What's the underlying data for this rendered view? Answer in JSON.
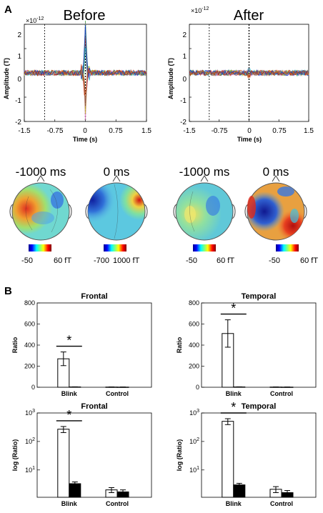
{
  "panel_labels": [
    "A",
    "B"
  ],
  "panel_a": {
    "before": {
      "title": "Before",
      "exponent": "×10",
      "exponent_power": "-12",
      "ylabel": "Amplitude (T)",
      "xlabel": "Time (s)",
      "xticks": [
        "-1.5",
        "-0.75",
        "0",
        "0.75",
        "1.5"
      ],
      "yticks": [
        "2",
        "1",
        "0",
        "-1",
        "-2"
      ],
      "topomaps": [
        {
          "time": "-1000 ms",
          "scale_min": "-50",
          "scale_max": "60 fT"
        },
        {
          "time": "0 ms",
          "scale_min": "-700",
          "scale_max": "1000 fT"
        }
      ]
    },
    "after": {
      "title": "After",
      "exponent": "×10",
      "exponent_power": "-12",
      "ylabel": "Amplitude (T)",
      "xlabel": "Time (s)",
      "xticks": [
        "-1.5",
        "-0.75",
        "0",
        "0.75",
        "1.5"
      ],
      "yticks": [
        "2",
        "1",
        "0",
        "-1",
        "-2"
      ],
      "topomaps": [
        {
          "time": "-1000 ms",
          "scale_min": "-50",
          "scale_max": "60 fT"
        },
        {
          "time": "0 ms",
          "scale_min": "-50",
          "scale_max": "60 fT"
        }
      ]
    }
  },
  "panel_b": {
    "ratio_yticks": [
      "800",
      "600",
      "400",
      "200",
      "0"
    ],
    "log_ytick_base": "10",
    "log_ytick_powers": [
      "3",
      "2",
      "1"
    ],
    "significance_mark": "*"
  },
  "chart_data": [
    {
      "type": "line",
      "title": "Before",
      "xlabel": "Time (s)",
      "ylabel": "Amplitude (T)",
      "xlim": [
        -1.5,
        1.5
      ],
      "ylim": [
        -2,
        2
      ],
      "y_scale_factor": "×10^-12",
      "vertical_markers": [
        -1.0,
        0
      ],
      "peak": {
        "x": 0,
        "y_max": 2.4,
        "y_min": -1.9
      }
    },
    {
      "type": "line",
      "title": "After",
      "xlabel": "Time (s)",
      "ylabel": "Amplitude (T)",
      "xlim": [
        -1.5,
        1.5
      ],
      "ylim": [
        -2,
        2
      ],
      "y_scale_factor": "×10^-12",
      "vertical_markers": [
        -1.0,
        0
      ],
      "peak": {
        "x": 0,
        "y_max": 0.2,
        "y_min": -0.2
      }
    },
    {
      "type": "bar",
      "title": "Frontal",
      "ylabel": "Ratio",
      "categories": [
        "Blink",
        "Control"
      ],
      "ylim": [
        0,
        800
      ],
      "series": [
        {
          "values": [
            270,
            2
          ],
          "errors": [
            65,
            1
          ]
        },
        {
          "values": [
            3,
            1.5
          ],
          "errors": [
            1,
            0.5
          ]
        }
      ]
    },
    {
      "type": "bar",
      "title": "Temporal",
      "ylabel": "Ratio",
      "categories": [
        "Blink",
        "Control"
      ],
      "ylim": [
        0,
        800
      ],
      "series": [
        {
          "values": [
            510,
            2
          ],
          "errors": [
            130,
            1
          ]
        },
        {
          "values": [
            3,
            1.5
          ],
          "errors": [
            1,
            0.5
          ]
        }
      ]
    },
    {
      "type": "bar",
      "title": "Frontal",
      "ylabel": "log (Ratio)",
      "categories": [
        "Blink",
        "Control"
      ],
      "yscale": "log",
      "ylim": [
        1.1,
        1000
      ],
      "series": [
        {
          "values": [
            270,
            2.0
          ],
          "errors": [
            65,
            0.4
          ]
        },
        {
          "values": [
            3.3,
            1.7
          ],
          "errors": [
            0.5,
            0.3
          ]
        }
      ]
    },
    {
      "type": "bar",
      "title": "Temporal",
      "ylabel": "log (Ratio)",
      "categories": [
        "Blink",
        "Control"
      ],
      "yscale": "log",
      "ylim": [
        1.1,
        1000
      ],
      "series": [
        {
          "values": [
            510,
            2.1
          ],
          "errors": [
            120,
            0.5
          ]
        },
        {
          "values": [
            3.0,
            1.6
          ],
          "errors": [
            0.4,
            0.3
          ]
        }
      ]
    }
  ]
}
